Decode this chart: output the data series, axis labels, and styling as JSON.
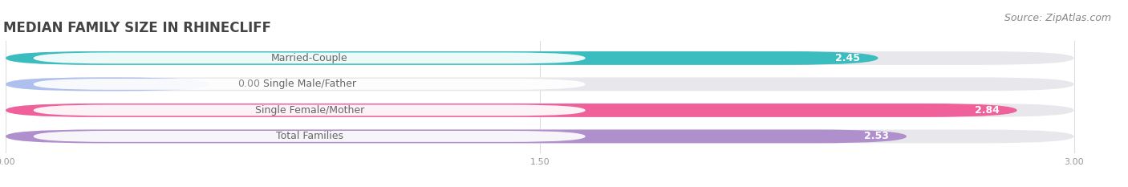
{
  "title": "MEDIAN FAMILY SIZE IN RHINECLIFF",
  "source": "Source: ZipAtlas.com",
  "categories": [
    "Married-Couple",
    "Single Male/Father",
    "Single Female/Mother",
    "Total Families"
  ],
  "values": [
    2.45,
    0.0,
    2.84,
    2.53
  ],
  "bar_colors": [
    "#3bbcbe",
    "#b0c0ee",
    "#f0609a",
    "#b090cc"
  ],
  "bar_bg_color": "#e8e8ec",
  "label_bg_color": "#ffffff",
  "xlim": [
    0,
    3.0
  ],
  "xticks": [
    0.0,
    1.5,
    3.0
  ],
  "xtick_labels": [
    "0.00",
    "1.50",
    "3.00"
  ],
  "title_fontsize": 12,
  "source_fontsize": 9,
  "label_fontsize": 9,
  "value_fontsize": 9,
  "background_color": "#ffffff",
  "bar_height": 0.52,
  "label_text_color": "#666666",
  "value_text_color_white": "#ffffff",
  "value_text_color_dark": "#888888"
}
